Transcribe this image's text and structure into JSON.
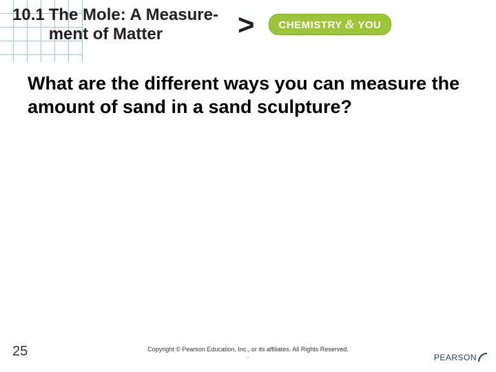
{
  "header": {
    "section_number": "10.1",
    "title": "The Mole: A Measure-\nment of Matter",
    "chevron": ">",
    "badge": {
      "left": "CHEMISTRY",
      "amp": "&",
      "right": "YOU"
    }
  },
  "question": "What are the different ways you can measure the amount of sand in a sand sculpture?",
  "page_number": "25",
  "copyright": "Copyright © Pearson Education, Inc., or its affiliates. All Rights Reserved.\n.",
  "logo": {
    "text": "PEARSON"
  },
  "colors": {
    "grid_line": "#3bb5a8",
    "badge_bg": "#9ec43a",
    "badge_text": "#ffffff",
    "text": "#000000",
    "logo_color": "#2a3a6a"
  }
}
